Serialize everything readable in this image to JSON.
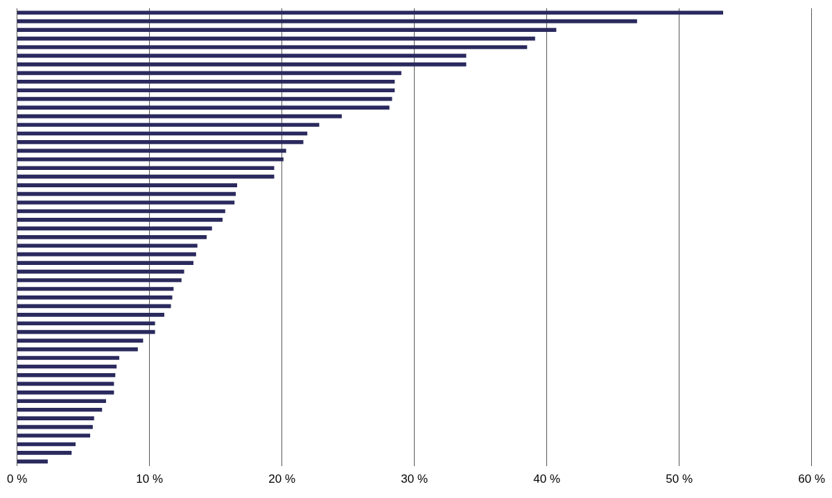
{
  "chart_data": {
    "type": "bar",
    "orientation": "horizontal",
    "grid": true,
    "tick_labels": "x",
    "color": "#2b2a5e",
    "categories": [
      null,
      null,
      null,
      null,
      null,
      null,
      null,
      null,
      null,
      null,
      null,
      null,
      null,
      null,
      null,
      null,
      null,
      null,
      null,
      null,
      null,
      null,
      null,
      null,
      null,
      null,
      null,
      null,
      null,
      null,
      null,
      null,
      null,
      null,
      null,
      null,
      null,
      null,
      null,
      null,
      null,
      null,
      null,
      null,
      null,
      null,
      null,
      null,
      null,
      null,
      null,
      null,
      null
    ],
    "values": [
      53.3,
      46.8,
      40.7,
      39.1,
      38.5,
      33.9,
      33.9,
      29.0,
      28.5,
      28.5,
      28.3,
      28.1,
      24.5,
      22.8,
      21.9,
      21.6,
      20.3,
      20.1,
      19.4,
      19.4,
      16.6,
      16.5,
      16.4,
      15.7,
      15.5,
      14.7,
      14.3,
      13.6,
      13.5,
      13.3,
      12.6,
      12.4,
      11.8,
      11.7,
      11.6,
      11.1,
      10.4,
      10.4,
      9.5,
      9.1,
      7.7,
      7.5,
      7.4,
      7.3,
      7.3,
      6.7,
      6.4,
      5.8,
      5.7,
      5.5,
      4.4,
      4.1,
      2.3
    ],
    "xlim": [
      0,
      60
    ],
    "xticks": [
      {
        "value": 0,
        "label": "0 %"
      },
      {
        "value": 10,
        "label": "10 %"
      },
      {
        "value": 20,
        "label": "20 %"
      },
      {
        "value": 30,
        "label": "30 %"
      },
      {
        "value": 40,
        "label": "40 %"
      },
      {
        "value": 50,
        "label": "50 %"
      },
      {
        "value": 60,
        "label": "60 %"
      }
    ]
  }
}
